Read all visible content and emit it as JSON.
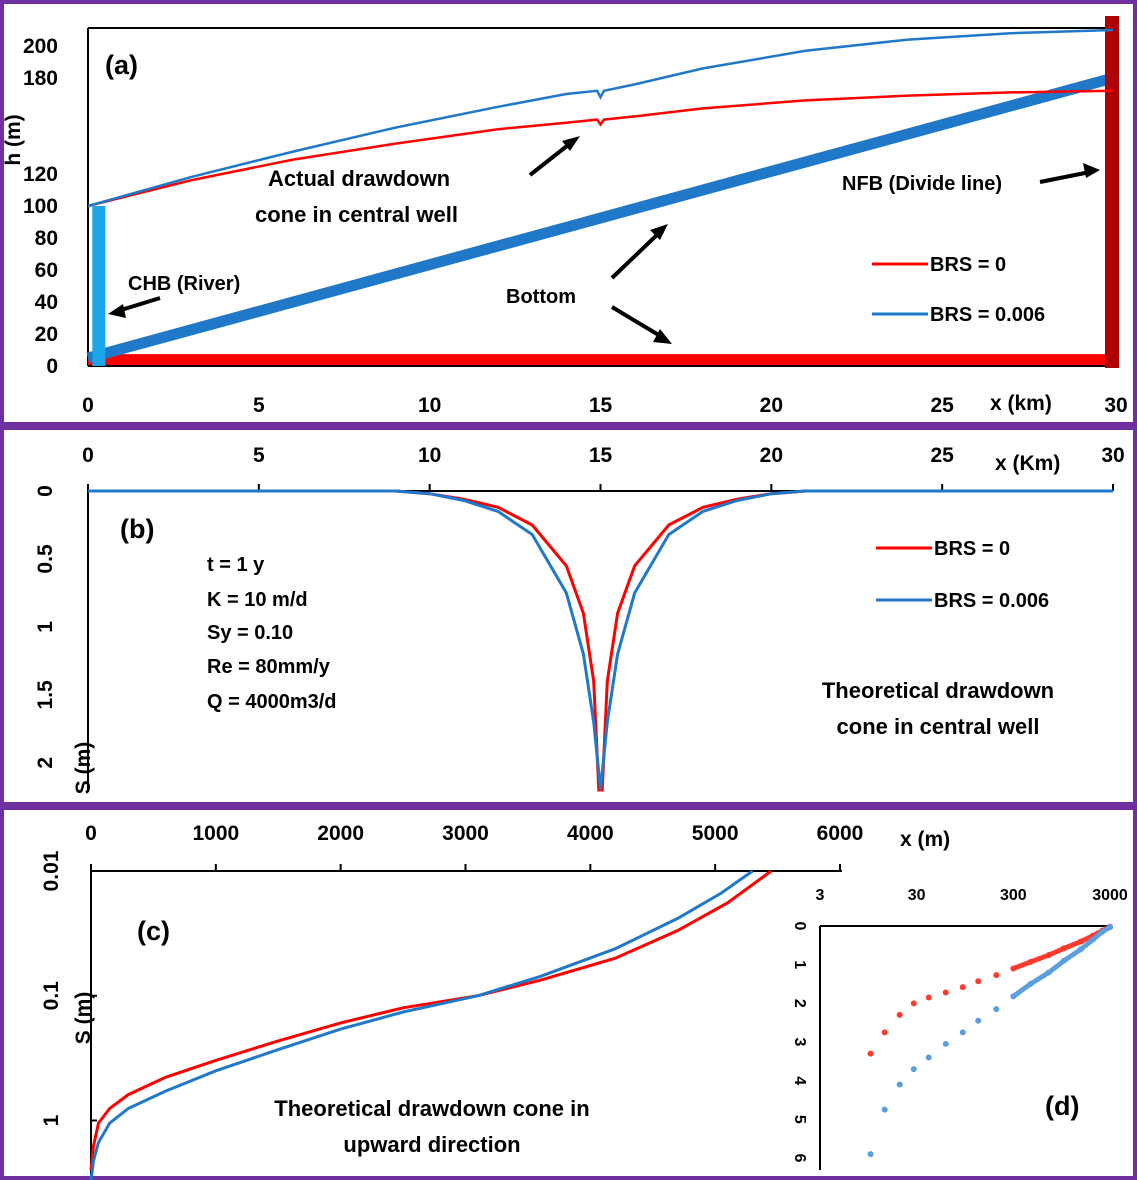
{
  "colors": {
    "border": "#7030a0",
    "red": "#ff0000",
    "blue": "#1f78c8",
    "dark_red": "#b00000",
    "light_blue": "#1aa7e8",
    "scatter_red": "#ff3b2f",
    "scatter_blue": "#5a9ede"
  },
  "chart_data": [
    {
      "type": "line",
      "panel_label": "(a)",
      "xlabel": "x (km)",
      "ylabel": "h (m)",
      "xlim": [
        0,
        30
      ],
      "ylim": [
        0,
        210
      ],
      "x_ticks": [
        "0",
        "5",
        "10",
        "15",
        "20",
        "25",
        "30"
      ],
      "y_ticks": [
        "0",
        "20",
        "40",
        "60",
        "80",
        "100",
        "120",
        "180",
        "200"
      ],
      "series": [
        {
          "name": "BRS = 0",
          "color": "#ff0000",
          "x": [
            0,
            3,
            6,
            9,
            12,
            14,
            14.9,
            15,
            15.1,
            16,
            18,
            21,
            24,
            27,
            30
          ],
          "y": [
            100,
            116,
            129,
            139,
            148,
            152,
            154,
            151,
            154,
            156,
            161,
            166,
            169,
            171,
            172
          ]
        },
        {
          "name": "BRS = 0.006",
          "color": "#1f78c8",
          "x": [
            0,
            3,
            6,
            9,
            12,
            14,
            14.9,
            15,
            15.1,
            16,
            18,
            21,
            24,
            27,
            30
          ],
          "y": [
            100,
            118,
            134,
            149,
            162,
            170,
            172,
            168,
            172,
            176,
            186,
            197,
            204,
            208,
            210
          ]
        }
      ],
      "bottom_red": {
        "x": [
          0,
          30
        ],
        "y": [
          4,
          4
        ]
      },
      "bottom_blue": {
        "x": [
          0,
          30
        ],
        "y": [
          5,
          180
        ]
      },
      "chb_bar": {
        "x": 0.2,
        "y": [
          0,
          100
        ]
      },
      "nfb_bar": {
        "x": 30,
        "y": [
          0,
          218
        ]
      },
      "annotations": {
        "drawdown_line1": "Actual drawdown",
        "drawdown_line2": "cone in central well",
        "nfb": "NFB (Divide line)",
        "chb": "CHB (River)",
        "bottom": "Bottom"
      },
      "legend_position": "bottom-right"
    },
    {
      "type": "line",
      "panel_label": "(b)",
      "xlabel": "x (Km)",
      "ylabel": "S (m)",
      "xlim": [
        0,
        30
      ],
      "ylim": [
        2.2,
        0
      ],
      "x_ticks": [
        "0",
        "5",
        "10",
        "15",
        "20",
        "25",
        "30"
      ],
      "y_ticks": [
        "0",
        "0.5",
        "1",
        "1.5",
        "2"
      ],
      "series": [
        {
          "name": "BRS = 0",
          "color": "#ff0000",
          "x": [
            0,
            9,
            10,
            11,
            12,
            13,
            14,
            14.5,
            14.8,
            14.95,
            15.05,
            15.2,
            15.5,
            16,
            17,
            18,
            19,
            20,
            21,
            30
          ],
          "y": [
            0,
            0,
            0.02,
            0.06,
            0.12,
            0.25,
            0.55,
            0.9,
            1.4,
            2.2,
            2.2,
            1.4,
            0.9,
            0.55,
            0.25,
            0.12,
            0.06,
            0.02,
            0,
            0
          ]
        },
        {
          "name": "BRS = 0.006",
          "color": "#1f78c8",
          "x": [
            0,
            9,
            10,
            11,
            12,
            13,
            14,
            14.5,
            14.8,
            15.0,
            15.2,
            15.5,
            16,
            17,
            18,
            19,
            20,
            21,
            30
          ],
          "y": [
            0,
            0,
            0.02,
            0.07,
            0.15,
            0.32,
            0.75,
            1.2,
            1.7,
            2.2,
            1.7,
            1.2,
            0.75,
            0.32,
            0.15,
            0.07,
            0.02,
            0,
            0
          ]
        }
      ],
      "parameters": [
        "t = 1 y",
        "K = 10 m/d",
        "Sy = 0.10",
        "Re = 80mm/y",
        "Q = 4000m3/d"
      ],
      "annotations": {
        "line1": "Theoretical drawdown",
        "line2": "cone in central well"
      },
      "legend_position": "top-right"
    },
    {
      "type": "line",
      "panel_label": "(c)",
      "xlabel": "x (m)",
      "ylabel": "S (m)",
      "xlim": [
        0,
        6000
      ],
      "ylim": [
        0.01,
        3
      ],
      "y_scale": "log",
      "x_ticks": [
        "0",
        "1000",
        "2000",
        "3000",
        "4000",
        "5000",
        "6000"
      ],
      "y_ticks": [
        "0.01",
        "0.1",
        "1"
      ],
      "series": [
        {
          "color": "#ff0000",
          "x": [
            0,
            20,
            60,
            150,
            300,
            600,
            1000,
            1500,
            2000,
            2500,
            3100,
            3600,
            4200,
            4700,
            5100,
            5450
          ],
          "y": [
            2.5,
            1.6,
            1.05,
            0.8,
            0.62,
            0.45,
            0.33,
            0.23,
            0.165,
            0.125,
            0.1,
            0.075,
            0.05,
            0.03,
            0.018,
            0.01
          ]
        },
        {
          "color": "#1f78c8",
          "x": [
            0,
            20,
            60,
            150,
            300,
            600,
            1000,
            1500,
            2000,
            2500,
            3100,
            3600,
            4200,
            4700,
            5050,
            5300
          ],
          "y": [
            3.0,
            2.1,
            1.5,
            1.05,
            0.8,
            0.58,
            0.4,
            0.27,
            0.185,
            0.135,
            0.1,
            0.07,
            0.042,
            0.024,
            0.015,
            0.01
          ]
        }
      ],
      "annotations": {
        "line1": "Theoretical drawdown cone in",
        "line2": "upward direction"
      }
    },
    {
      "type": "scatter",
      "panel_label": "(d)",
      "x_scale": "log",
      "xlim": [
        3,
        3000
      ],
      "ylim": [
        6,
        0
      ],
      "x_ticks": [
        "3",
        "30",
        "300",
        "3000"
      ],
      "y_ticks": [
        "0",
        "1",
        "2",
        "3",
        "4",
        "5",
        "6"
      ],
      "series": [
        {
          "color": "#ff3b2f",
          "x": [
            10,
            14,
            20,
            28,
            40,
            60,
            90,
            130,
            200,
            300,
            450,
            700,
            1000,
            1500,
            2000,
            2500,
            3000
          ],
          "y": [
            3.3,
            2.75,
            2.3,
            2.0,
            1.85,
            1.72,
            1.58,
            1.43,
            1.27,
            1.1,
            0.93,
            0.75,
            0.58,
            0.4,
            0.25,
            0.12,
            0.02
          ]
        },
        {
          "color": "#5a9ede",
          "x": [
            10,
            14,
            20,
            28,
            40,
            60,
            90,
            130,
            200,
            300,
            450,
            700,
            1000,
            1500,
            2000,
            2500,
            3000
          ],
          "y": [
            5.9,
            4.75,
            4.1,
            3.7,
            3.4,
            3.05,
            2.75,
            2.45,
            2.15,
            1.82,
            1.5,
            1.2,
            0.9,
            0.6,
            0.35,
            0.15,
            0.03
          ]
        }
      ]
    }
  ]
}
